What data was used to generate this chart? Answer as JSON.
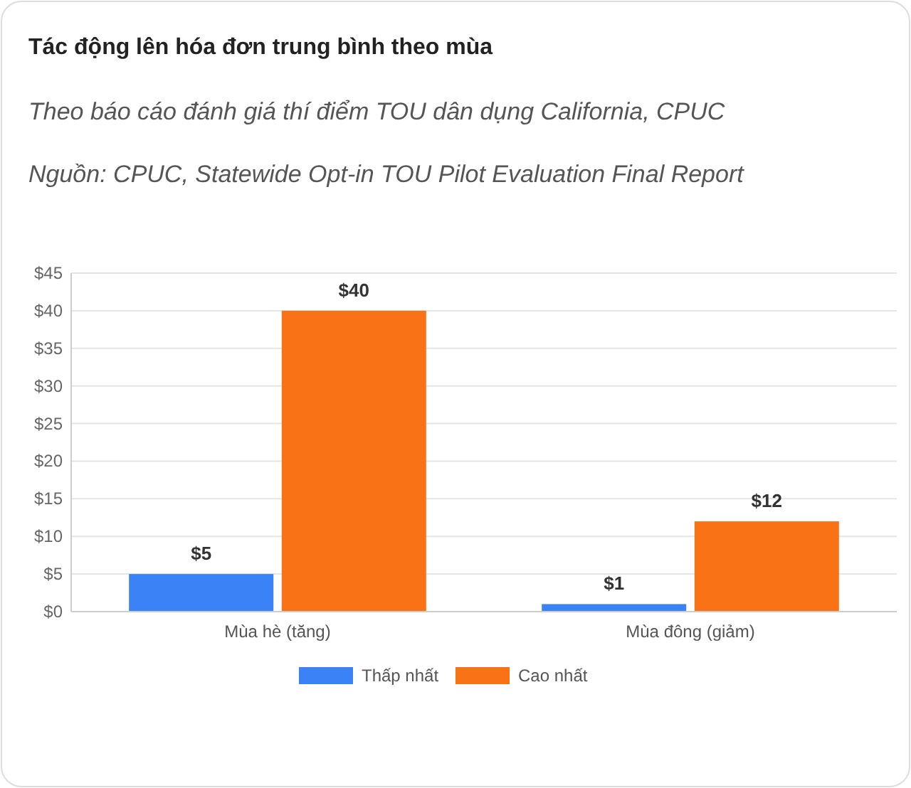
{
  "chart_data": {
    "type": "bar",
    "title": "Tác động lên hóa đơn trung bình theo mùa",
    "subtitle": "Theo báo cáo đánh giá thí điểm TOU dân dụng California, CPUC",
    "annotations": [
      "Nguồn: CPUC, Statewide Opt-in TOU Pilot Evaluation Final Report"
    ],
    "categories": [
      "Mùa hè (tăng)",
      "Mùa đông (giảm)"
    ],
    "series": [
      {
        "name": "Thấp nhất",
        "color": "#3b82f6",
        "values": [
          5,
          1
        ],
        "value_labels": [
          "$5",
          "$1"
        ]
      },
      {
        "name": "Cao nhất",
        "color": "#f97316",
        "values": [
          40,
          12
        ],
        "value_labels": [
          "$40",
          "$12"
        ]
      }
    ],
    "ylim": [
      0,
      45
    ],
    "yticks": [
      {
        "value": 0,
        "label": "$0"
      },
      {
        "value": 5,
        "label": "$5"
      },
      {
        "value": 10,
        "label": "$10"
      },
      {
        "value": 15,
        "label": "$15"
      },
      {
        "value": 20,
        "label": "$20"
      },
      {
        "value": 25,
        "label": "$25"
      },
      {
        "value": 30,
        "label": "$30"
      },
      {
        "value": 35,
        "label": "$35"
      },
      {
        "value": 40,
        "label": "$40"
      },
      {
        "value": 45,
        "label": "$45"
      }
    ],
    "grid": "y",
    "legend": "bottom"
  }
}
